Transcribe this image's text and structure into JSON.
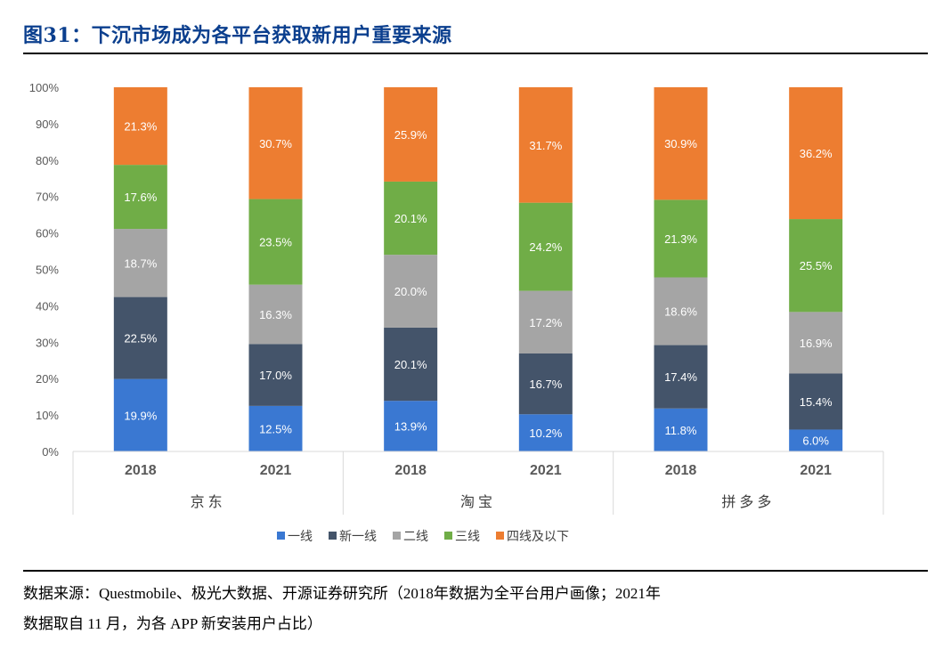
{
  "title": "图31：下沉市场成为各平台获取新用户重要来源",
  "source": {
    "line1": "数据来源：Questmobile、极光大数据、开源证券研究所（2018年数据为全平台用户画像；2021年",
    "line2": "数据取自 11 月，为各 APP 新安装用户占比）"
  },
  "chart_data": {
    "type": "bar",
    "stacked": true,
    "percent_axis": true,
    "ylim": [
      0,
      100
    ],
    "yticks": [
      "0%",
      "10%",
      "20%",
      "30%",
      "40%",
      "50%",
      "60%",
      "70%",
      "80%",
      "90%",
      "100%"
    ],
    "groups": [
      "京东",
      "淘宝",
      "拼多多"
    ],
    "categories": [
      "2018",
      "2021",
      "2018",
      "2021",
      "2018",
      "2021"
    ],
    "series": [
      {
        "name": "一线",
        "color": "#3a78d2",
        "values": [
          19.9,
          12.5,
          13.9,
          10.2,
          11.8,
          6.0
        ],
        "labels": [
          "19.9%",
          "12.5%",
          "13.9%",
          "10.2%",
          "11.8%",
          "6.0%"
        ]
      },
      {
        "name": "新一线",
        "color": "#44546a",
        "values": [
          22.5,
          17.0,
          20.1,
          16.7,
          17.4,
          15.4
        ],
        "labels": [
          "22.5%",
          "17.0%",
          "20.1%",
          "16.7%",
          "17.4%",
          "15.4%"
        ]
      },
      {
        "name": "二线",
        "color": "#a5a5a5",
        "values": [
          18.7,
          16.3,
          20.0,
          17.2,
          18.6,
          16.9
        ],
        "labels": [
          "18.7%",
          "16.3%",
          "20.0%",
          "17.2%",
          "18.6%",
          "16.9%"
        ]
      },
      {
        "name": "三线",
        "color": "#70ad47",
        "values": [
          17.6,
          23.5,
          20.1,
          24.2,
          21.3,
          25.5
        ],
        "labels": [
          "17.6%",
          "23.5%",
          "20.1%",
          "24.2%",
          "21.3%",
          "25.5%"
        ]
      },
      {
        "name": "四线及以下",
        "color": "#ed7d31",
        "values": [
          21.3,
          30.7,
          25.9,
          31.7,
          30.9,
          36.2
        ],
        "labels": [
          "21.3%",
          "30.7%",
          "25.9%",
          "31.7%",
          "30.9%",
          "36.2%"
        ]
      }
    ],
    "legend": "bottom",
    "grid": false
  }
}
